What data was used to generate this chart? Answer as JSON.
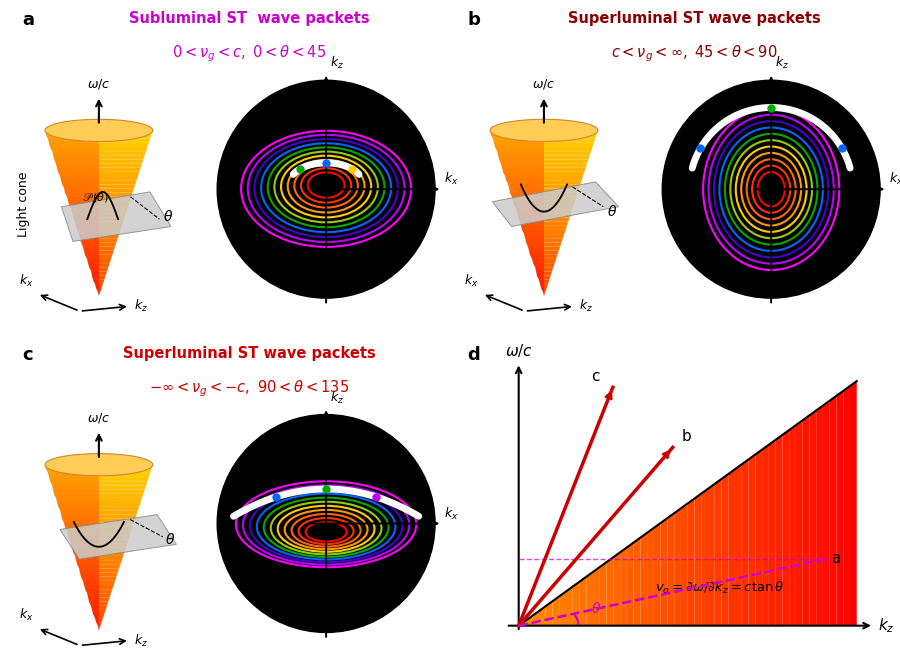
{
  "panel_a": {
    "title_line1": "Subluminal ST  wave packets",
    "title_color": "#CC00CC",
    "subtitle": "0<v_g<c, 0<θ<45",
    "label": "a",
    "ellipse_type": "subluminal"
  },
  "panel_b": {
    "title_line1": "Superluminal ST wave packets",
    "title_color": "#8B0000",
    "subtitle": "c<v_g<∞, 45<θ<90",
    "label": "b",
    "ellipse_type": "superluminal_b"
  },
  "panel_c": {
    "title_line1": "Superluminal ST wave packets",
    "title_color": "#CC0000",
    "subtitle": "−∞<v_g<−c, 90<θ<135",
    "label": "c",
    "ellipse_type": "superluminal_c"
  },
  "panel_d": {
    "label": "d"
  },
  "cone_grad_n": 40,
  "ellipse_colors_sub": [
    "#FF0000",
    "#FF3300",
    "#FF6600",
    "#FF9900",
    "#FFCC00",
    "#99CC00",
    "#00AA00",
    "#0066FF",
    "#4400CC",
    "#BB00FF",
    "#FF00FF"
  ],
  "ellipse_colors_b": [
    "#FF0000",
    "#FF3300",
    "#FF6600",
    "#FF9900",
    "#FFCC00",
    "#99CC00",
    "#00AA00",
    "#0066FF",
    "#4400CC",
    "#BB00FF",
    "#FF00FF"
  ],
  "ellipse_colors_c": [
    "#FF0000",
    "#FF3300",
    "#FF6600",
    "#FF9900",
    "#FFCC00",
    "#99CC00",
    "#00AA00",
    "#0066FF",
    "#4400CC",
    "#BB00FF",
    "#FF00FF"
  ]
}
